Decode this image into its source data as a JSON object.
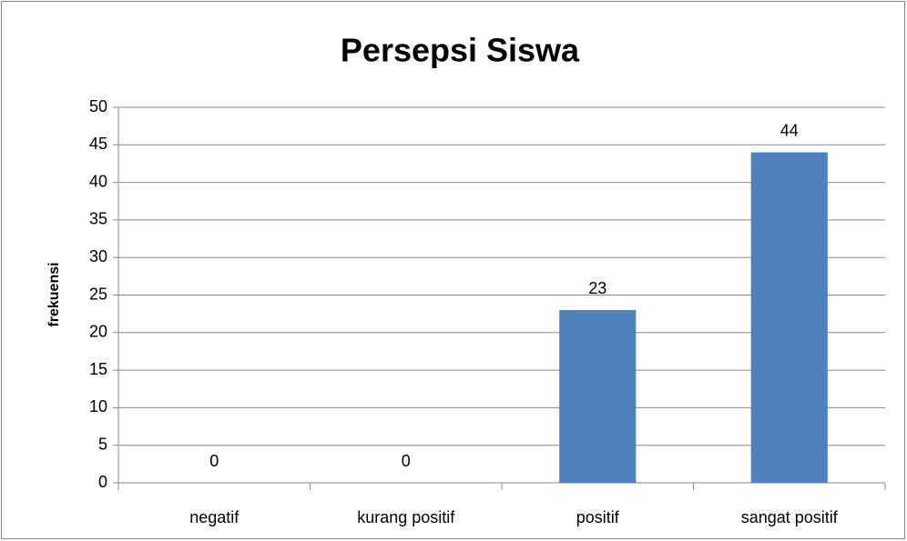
{
  "chart_data": {
    "type": "bar",
    "title": "Persepsi Siswa",
    "y_label": "frekuensi",
    "categories": [
      "negatif",
      "kurang positif",
      "positif",
      "sangat positif"
    ],
    "values": [
      0,
      0,
      23,
      44
    ],
    "color": "#4f81bd",
    "ylim": [
      0,
      50
    ],
    "yticks": [
      0,
      5,
      10,
      15,
      20,
      25,
      30,
      35,
      40,
      45,
      50
    ],
    "grid": true,
    "data_labels": true
  }
}
